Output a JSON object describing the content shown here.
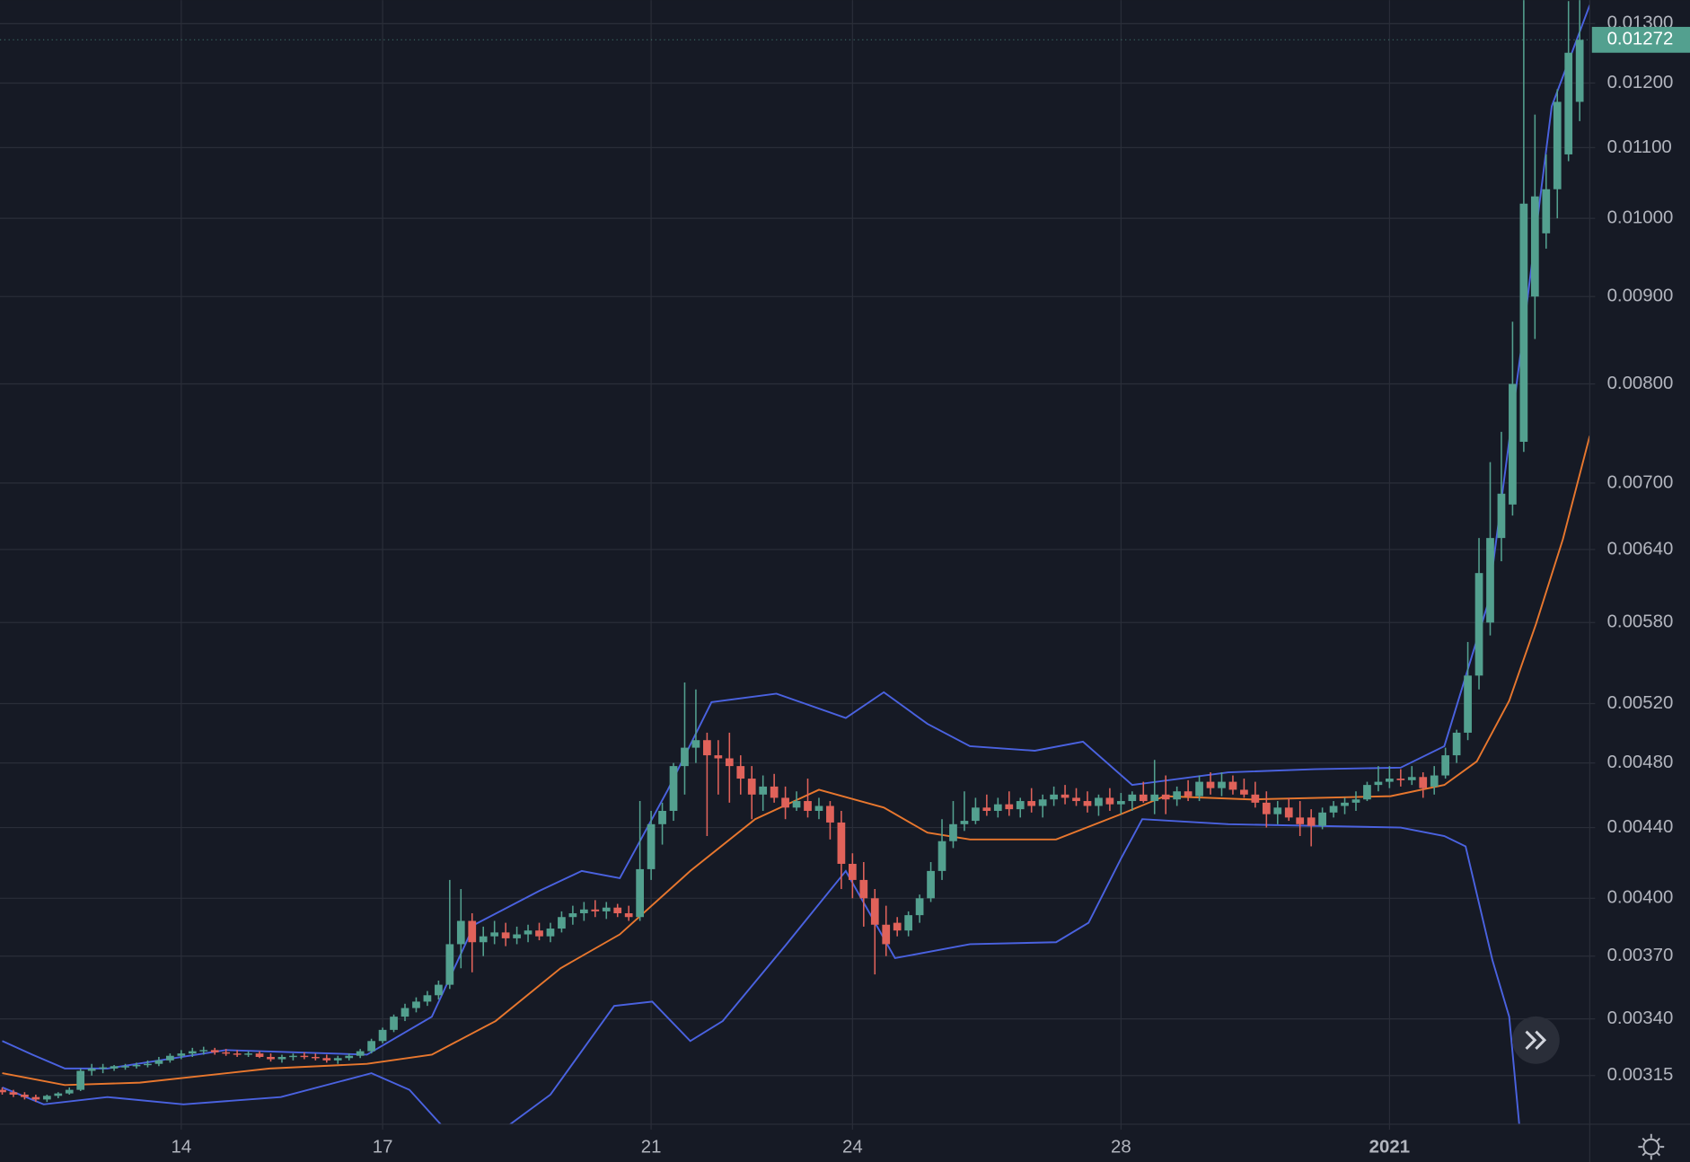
{
  "chart_data": {
    "type": "candlestick",
    "log_scale": true,
    "grid": true,
    "up_color": "#53a08f",
    "down_color": "#e0625a",
    "xlim": [
      -0.2,
      141.9
    ],
    "ylim": [
      0.00295,
      0.01342
    ],
    "xticks": [
      {
        "value": 16,
        "label": "14"
      },
      {
        "value": 34,
        "label": "17"
      },
      {
        "value": 58,
        "label": "21"
      },
      {
        "value": 76,
        "label": "24"
      },
      {
        "value": 100,
        "label": "28"
      },
      {
        "value": 124,
        "label": "2021"
      }
    ],
    "yticks": [
      {
        "value": 0.013,
        "label": "0.01300"
      },
      {
        "value": 0.012,
        "label": "0.01200"
      },
      {
        "value": 0.011,
        "label": "0.01100"
      },
      {
        "value": 0.01,
        "label": "0.01000"
      },
      {
        "value": 0.009,
        "label": "0.00900"
      },
      {
        "value": 0.008,
        "label": "0.00800"
      },
      {
        "value": 0.007,
        "label": "0.00700"
      },
      {
        "value": 0.0064,
        "label": "0.00640"
      },
      {
        "value": 0.0058,
        "label": "0.00580"
      },
      {
        "value": 0.0052,
        "label": "0.00520"
      },
      {
        "value": 0.0048,
        "label": "0.00480"
      },
      {
        "value": 0.0044,
        "label": "0.00440"
      },
      {
        "value": 0.004,
        "label": "0.00400"
      },
      {
        "value": 0.0037,
        "label": "0.00370"
      },
      {
        "value": 0.0034,
        "label": "0.00340"
      },
      {
        "value": 0.00315,
        "label": "0.00315"
      }
    ],
    "last_price": 0.01272,
    "candles": [
      [
        0.00309,
        0.0031,
        0.00307,
        0.00308
      ],
      [
        0.00308,
        0.00309,
        0.00306,
        0.00307
      ],
      [
        0.00307,
        0.00308,
        0.00305,
        0.00306
      ],
      [
        0.00306,
        0.00307,
        0.00304,
        0.00305
      ],
      [
        0.00305,
        0.00307,
        0.00304,
        0.003065
      ],
      [
        0.003065,
        0.00308,
        0.003055,
        0.003075
      ],
      [
        0.003075,
        0.0031,
        0.00307,
        0.00309
      ],
      [
        0.00309,
        0.00318,
        0.003085,
        0.00317
      ],
      [
        0.00317,
        0.0032,
        0.00315,
        0.00318
      ],
      [
        0.00318,
        0.0032,
        0.00316,
        0.003185
      ],
      [
        0.00318,
        0.003195,
        0.00317,
        0.00319
      ],
      [
        0.003185,
        0.0032,
        0.003175,
        0.00319
      ],
      [
        0.00319,
        0.003205,
        0.00318,
        0.003195
      ],
      [
        0.003195,
        0.003215,
        0.003185,
        0.0032
      ],
      [
        0.0032,
        0.00323,
        0.00319,
        0.003215
      ],
      [
        0.003215,
        0.003245,
        0.003205,
        0.003235
      ],
      [
        0.003235,
        0.00326,
        0.00322,
        0.003245
      ],
      [
        0.003245,
        0.00327,
        0.00323,
        0.003255
      ],
      [
        0.003255,
        0.003275,
        0.00324,
        0.00326
      ],
      [
        0.00326,
        0.00327,
        0.00324,
        0.00325
      ],
      [
        0.00325,
        0.003265,
        0.003235,
        0.003245
      ],
      [
        0.003245,
        0.00326,
        0.00323,
        0.00324
      ],
      [
        0.00324,
        0.003255,
        0.00323,
        0.003245
      ],
      [
        0.003245,
        0.003255,
        0.003225,
        0.00323
      ],
      [
        0.00323,
        0.003245,
        0.00321,
        0.00322
      ],
      [
        0.00322,
        0.00324,
        0.003205,
        0.00323
      ],
      [
        0.00323,
        0.003245,
        0.003215,
        0.003235
      ],
      [
        0.003235,
        0.00325,
        0.00322,
        0.00323
      ],
      [
        0.00323,
        0.003245,
        0.003215,
        0.003225
      ],
      [
        0.003225,
        0.00324,
        0.003205,
        0.003215
      ],
      [
        0.003215,
        0.003235,
        0.0032,
        0.003225
      ],
      [
        0.003225,
        0.003245,
        0.003215,
        0.003235
      ],
      [
        0.003235,
        0.003265,
        0.003225,
        0.003255
      ],
      [
        0.003255,
        0.00331,
        0.003245,
        0.0033
      ],
      [
        0.0033,
        0.00336,
        0.00329,
        0.00335
      ],
      [
        0.00335,
        0.00342,
        0.00334,
        0.00341
      ],
      [
        0.00341,
        0.00347,
        0.00339,
        0.00345
      ],
      [
        0.00345,
        0.0035,
        0.00343,
        0.00348
      ],
      [
        0.00348,
        0.00353,
        0.00346,
        0.00351
      ],
      [
        0.00351,
        0.00358,
        0.00349,
        0.00356
      ],
      [
        0.00356,
        0.0041,
        0.00354,
        0.00376
      ],
      [
        0.00376,
        0.00405,
        0.00364,
        0.00388
      ],
      [
        0.00388,
        0.00392,
        0.00362,
        0.00377
      ],
      [
        0.00377,
        0.00385,
        0.0037,
        0.0038
      ],
      [
        0.0038,
        0.00388,
        0.00376,
        0.00382
      ],
      [
        0.00382,
        0.00387,
        0.00375,
        0.00379
      ],
      [
        0.00379,
        0.00385,
        0.00376,
        0.00381
      ],
      [
        0.00381,
        0.00386,
        0.00377,
        0.00383
      ],
      [
        0.00383,
        0.00387,
        0.00378,
        0.0038
      ],
      [
        0.0038,
        0.00387,
        0.00377,
        0.00384
      ],
      [
        0.00384,
        0.00393,
        0.00382,
        0.0039
      ],
      [
        0.0039,
        0.00396,
        0.00386,
        0.00392
      ],
      [
        0.00392,
        0.00398,
        0.00388,
        0.00394
      ],
      [
        0.00394,
        0.00399,
        0.0039,
        0.00393
      ],
      [
        0.00393,
        0.00398,
        0.00389,
        0.00395
      ],
      [
        0.00395,
        0.00397,
        0.0039,
        0.00392
      ],
      [
        0.00392,
        0.00396,
        0.00388,
        0.0039
      ],
      [
        0.0039,
        0.00456,
        0.00388,
        0.00416
      ],
      [
        0.00416,
        0.0045,
        0.0041,
        0.00442
      ],
      [
        0.00442,
        0.00455,
        0.0043,
        0.0045
      ],
      [
        0.0045,
        0.0048,
        0.00444,
        0.00478
      ],
      [
        0.00478,
        0.00535,
        0.0046,
        0.0049
      ],
      [
        0.0049,
        0.0053,
        0.0048,
        0.00495
      ],
      [
        0.00495,
        0.005,
        0.00435,
        0.00485
      ],
      [
        0.00485,
        0.00495,
        0.0046,
        0.00483
      ],
      [
        0.00483,
        0.005,
        0.00455,
        0.00478
      ],
      [
        0.00478,
        0.00485,
        0.0046,
        0.0047
      ],
      [
        0.0047,
        0.00478,
        0.00445,
        0.0046
      ],
      [
        0.0046,
        0.00472,
        0.0045,
        0.00465
      ],
      [
        0.00465,
        0.00473,
        0.00455,
        0.00458
      ],
      [
        0.00458,
        0.00465,
        0.00445,
        0.00452
      ],
      [
        0.00452,
        0.00462,
        0.0045,
        0.00456
      ],
      [
        0.00456,
        0.0047,
        0.00446,
        0.0045
      ],
      [
        0.0045,
        0.00458,
        0.00445,
        0.00453
      ],
      [
        0.00453,
        0.00456,
        0.00433,
        0.00443
      ],
      [
        0.00443,
        0.0045,
        0.00405,
        0.00419
      ],
      [
        0.00419,
        0.00425,
        0.004,
        0.0041
      ],
      [
        0.0041,
        0.0042,
        0.00385,
        0.004
      ],
      [
        0.004,
        0.00405,
        0.00361,
        0.00386
      ],
      [
        0.00386,
        0.00396,
        0.0037,
        0.00376
      ],
      [
        0.00387,
        0.0039,
        0.0038,
        0.00383
      ],
      [
        0.00383,
        0.00393,
        0.0038,
        0.00391
      ],
      [
        0.00391,
        0.00402,
        0.00387,
        0.004
      ],
      [
        0.004,
        0.0042,
        0.00398,
        0.00415
      ],
      [
        0.00415,
        0.00445,
        0.0041,
        0.00432
      ],
      [
        0.00432,
        0.00456,
        0.00428,
        0.00442
      ],
      [
        0.00442,
        0.00462,
        0.00438,
        0.00444
      ],
      [
        0.00444,
        0.00458,
        0.00442,
        0.00452
      ],
      [
        0.00452,
        0.0046,
        0.00447,
        0.0045
      ],
      [
        0.0045,
        0.00458,
        0.00446,
        0.00454
      ],
      [
        0.00454,
        0.00462,
        0.00447,
        0.00451
      ],
      [
        0.00451,
        0.00458,
        0.00446,
        0.00456
      ],
      [
        0.00456,
        0.00464,
        0.00449,
        0.00453
      ],
      [
        0.00453,
        0.0046,
        0.00446,
        0.00457
      ],
      [
        0.00457,
        0.00465,
        0.00453,
        0.0046
      ],
      [
        0.0046,
        0.00466,
        0.00454,
        0.00458
      ],
      [
        0.00458,
        0.00464,
        0.00453,
        0.00456
      ],
      [
        0.00456,
        0.00462,
        0.00449,
        0.00453
      ],
      [
        0.00453,
        0.0046,
        0.00447,
        0.00458
      ],
      [
        0.00458,
        0.00464,
        0.0045,
        0.00454
      ],
      [
        0.00454,
        0.00461,
        0.00448,
        0.00456
      ],
      [
        0.00456,
        0.00462,
        0.0045,
        0.0046
      ],
      [
        0.0046,
        0.00468,
        0.00455,
        0.00456
      ],
      [
        0.00456,
        0.00482,
        0.00448,
        0.0046
      ],
      [
        0.0046,
        0.00472,
        0.00448,
        0.00457
      ],
      [
        0.00457,
        0.00465,
        0.00453,
        0.00462
      ],
      [
        0.00462,
        0.00469,
        0.00456,
        0.00459
      ],
      [
        0.00459,
        0.00472,
        0.00456,
        0.00468
      ],
      [
        0.00468,
        0.00474,
        0.0046,
        0.00464
      ],
      [
        0.00464,
        0.00474,
        0.00459,
        0.00468
      ],
      [
        0.00468,
        0.00472,
        0.0046,
        0.00463
      ],
      [
        0.00463,
        0.0047,
        0.00458,
        0.0046
      ],
      [
        0.0046,
        0.00468,
        0.00452,
        0.00455
      ],
      [
        0.00455,
        0.00462,
        0.0044,
        0.00448
      ],
      [
        0.00448,
        0.00456,
        0.00442,
        0.00452
      ],
      [
        0.00452,
        0.00458,
        0.00444,
        0.00446
      ],
      [
        0.00446,
        0.00456,
        0.00435,
        0.00442
      ],
      [
        0.00446,
        0.00451,
        0.00429,
        0.00441
      ],
      [
        0.00441,
        0.00452,
        0.00439,
        0.00449
      ],
      [
        0.00449,
        0.00456,
        0.00446,
        0.00453
      ],
      [
        0.00453,
        0.00458,
        0.00448,
        0.00455
      ],
      [
        0.00455,
        0.00462,
        0.0045,
        0.00457
      ],
      [
        0.00457,
        0.00468,
        0.00456,
        0.00466
      ],
      [
        0.00466,
        0.00478,
        0.00462,
        0.00468
      ],
      [
        0.00468,
        0.00478,
        0.00464,
        0.0047
      ],
      [
        0.0047,
        0.00476,
        0.00465,
        0.00469
      ],
      [
        0.00469,
        0.00478,
        0.00466,
        0.00471
      ],
      [
        0.00471,
        0.00474,
        0.00458,
        0.00464
      ],
      [
        0.00465,
        0.00478,
        0.0046,
        0.00472
      ],
      [
        0.00472,
        0.0049,
        0.0047,
        0.00485
      ],
      [
        0.00485,
        0.00502,
        0.0048,
        0.005
      ],
      [
        0.005,
        0.00565,
        0.00495,
        0.0054
      ],
      [
        0.0054,
        0.0065,
        0.0053,
        0.0062
      ],
      [
        0.0058,
        0.0072,
        0.0057,
        0.0065
      ],
      [
        0.0065,
        0.0075,
        0.0063,
        0.0069
      ],
      [
        0.0068,
        0.0087,
        0.0067,
        0.008
      ],
      [
        0.0074,
        0.0135,
        0.0073,
        0.0102
      ],
      [
        0.009,
        0.0115,
        0.0085,
        0.0103
      ],
      [
        0.0098,
        0.0109,
        0.0096,
        0.0104
      ],
      [
        0.0104,
        0.0119,
        0.01,
        0.0117
      ],
      [
        0.0109,
        0.0134,
        0.0108,
        0.0125
      ],
      [
        0.0117,
        0.0136,
        0.0114,
        0.01272
      ]
    ],
    "lines": [
      {
        "color": "#4a62e0",
        "x": [
          0,
          2.7,
          5.6,
          9.4,
          20,
          32.6,
          38.4,
          42.2,
          48,
          51.8,
          55.2,
          59.5,
          63.4,
          69.2,
          75.4,
          78.8,
          82.7,
          86.5,
          92.3,
          96.6,
          101,
          109.6,
          117.3,
          125,
          128.9,
          132.8,
          135.7,
          138.5,
          141.9
        ],
        "values": [
          0.0033,
          0.00324,
          0.00318,
          0.00318,
          0.00326,
          0.00324,
          0.00341,
          0.00386,
          0.00404,
          0.00415,
          0.00411,
          0.00463,
          0.00521,
          0.00527,
          0.0051,
          0.00528,
          0.00506,
          0.00491,
          0.00488,
          0.00494,
          0.00466,
          0.00474,
          0.00476,
          0.00477,
          0.00491,
          0.00595,
          0.00832,
          0.01163,
          0.01333
        ]
      },
      {
        "color": "#e8772e",
        "x": [
          0,
          5.6,
          12.3,
          23.9,
          32.6,
          38.4,
          44.1,
          49.9,
          55.2,
          61.5,
          67.3,
          73,
          78.8,
          82.7,
          86.5,
          94.2,
          100,
          103.9,
          111.6,
          124.1,
          128.9,
          131.8,
          134.7,
          137.1,
          139.5,
          141.9
        ],
        "values": [
          0.00316,
          0.00311,
          0.00312,
          0.00318,
          0.0032,
          0.00324,
          0.00339,
          0.00364,
          0.00381,
          0.00415,
          0.00445,
          0.00463,
          0.00452,
          0.00437,
          0.00433,
          0.00433,
          0.00448,
          0.00459,
          0.00457,
          0.00459,
          0.00466,
          0.00481,
          0.00522,
          0.00579,
          0.00649,
          0.00746
        ]
      },
      {
        "color": "#4a62e0",
        "x": [
          0,
          3.7,
          9.4,
          16.2,
          24.9,
          33,
          36.4,
          39.8,
          45.1,
          49,
          54.7,
          58.1,
          61.5,
          64.4,
          70.1,
          75.4,
          79.8,
          86.5,
          94.2,
          97.1,
          100,
          101.9,
          109.6,
          125,
          128.9,
          130.8,
          133.2,
          134.7,
          135.7
        ],
        "values": [
          0.0031,
          0.00303,
          0.00306,
          0.00303,
          0.00306,
          0.00316,
          0.00309,
          0.00292,
          0.00294,
          0.00307,
          0.00346,
          0.00348,
          0.0033,
          0.00339,
          0.00376,
          0.00415,
          0.00369,
          0.00376,
          0.00377,
          0.00387,
          0.00422,
          0.00445,
          0.00442,
          0.0044,
          0.00435,
          0.00429,
          0.00368,
          0.00341,
          0.0029
        ]
      }
    ]
  }
}
